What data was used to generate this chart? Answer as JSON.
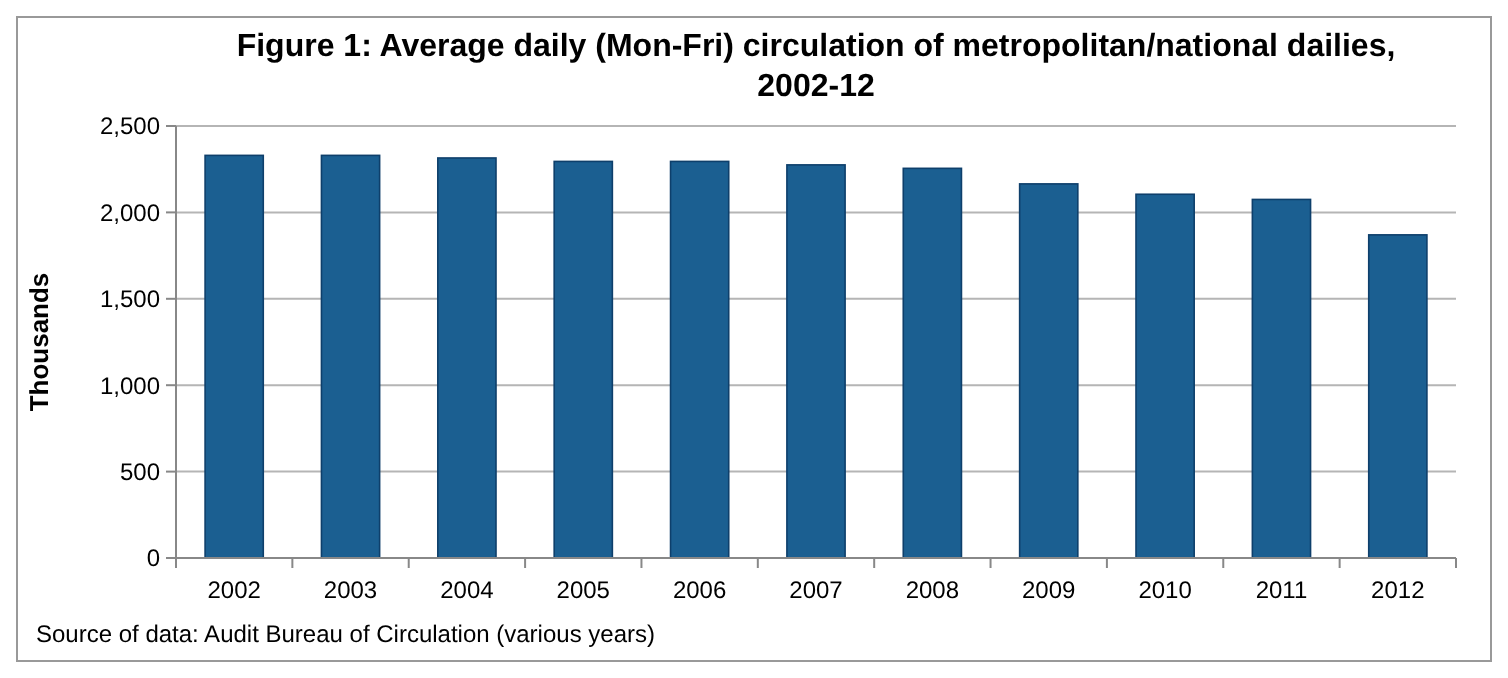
{
  "chart_data": {
    "type": "bar",
    "title": "Figure 1: Average daily (Mon-Fri) circulation of metropolitan/national dailies, 2002-12",
    "ylabel": "Thousands",
    "categories": [
      "2002",
      "2003",
      "2004",
      "2005",
      "2006",
      "2007",
      "2008",
      "2009",
      "2010",
      "2011",
      "2012"
    ],
    "values": [
      2330,
      2330,
      2315,
      2295,
      2295,
      2275,
      2255,
      2165,
      2105,
      2075,
      1870
    ],
    "color": "#1b5f91",
    "ylim": [
      0,
      2500
    ],
    "yticks": [
      {
        "value": 0,
        "label": "0"
      },
      {
        "value": 500,
        "label": "500"
      },
      {
        "value": 1000,
        "label": "1,000"
      },
      {
        "value": 1500,
        "label": "1,500"
      },
      {
        "value": 2000,
        "label": "2,000"
      },
      {
        "value": 2500,
        "label": "2,500"
      }
    ],
    "grid": "y",
    "annotations": [
      "Source of data: Audit Bureau of Circulation (various years)"
    ]
  }
}
